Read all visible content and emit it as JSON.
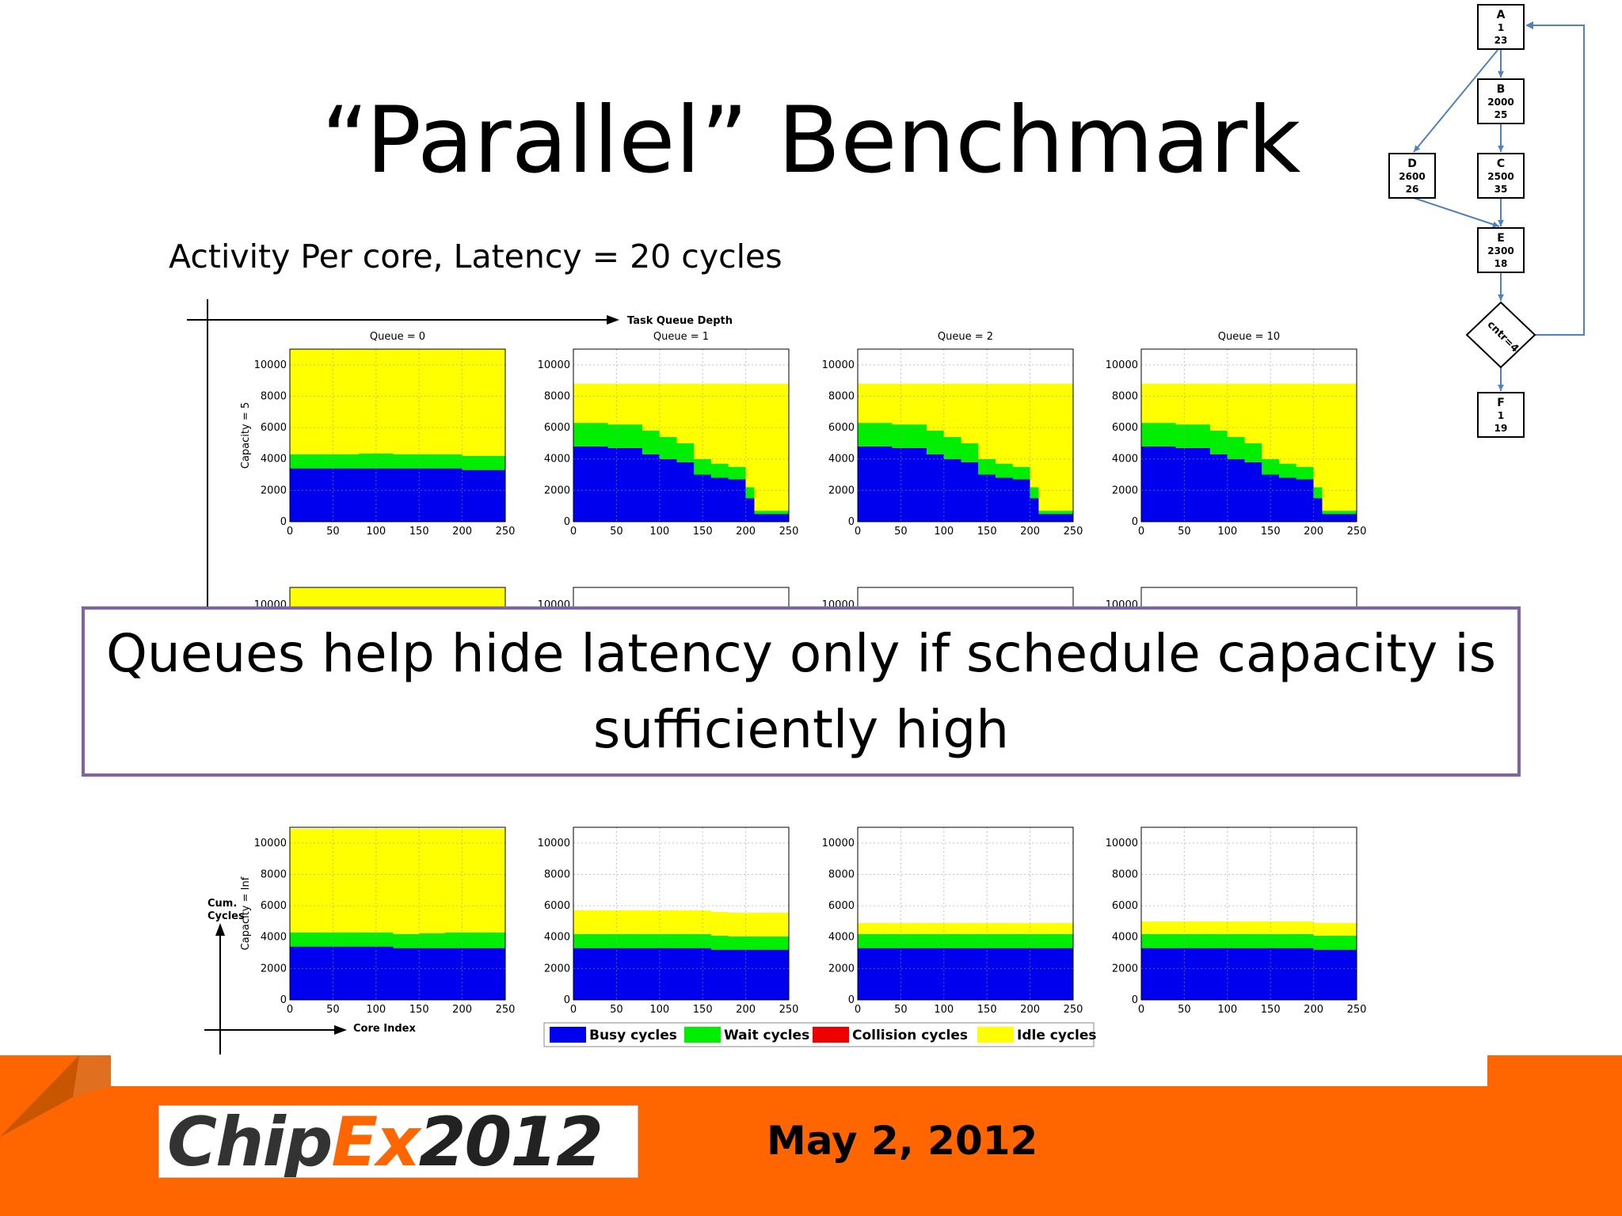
{
  "title": "“Parallel” Benchmark",
  "subtitle": "Activity Per core, Latency = 20 cycles",
  "callout": "Queues help hide latency only if schedule capacity is sufficiently high",
  "footer": {
    "logo_part1": "Chip",
    "logo_part2": "Ex",
    "logo_year": "2012",
    "date": "May 2, 2012"
  },
  "axes_labels": {
    "task_queue_depth": "Task Queue Depth",
    "cum_cycles": "Cum. Cycles",
    "core_index": "Core Index"
  },
  "flowchart": {
    "nodes": [
      {
        "id": "A",
        "v1": "1",
        "v2": "23"
      },
      {
        "id": "B",
        "v1": "2000",
        "v2": "25"
      },
      {
        "id": "C",
        "v1": "2500",
        "v2": "35"
      },
      {
        "id": "D",
        "v1": "2600",
        "v2": "26"
      },
      {
        "id": "E",
        "v1": "2300",
        "v2": "18"
      },
      {
        "id": "F",
        "v1": "1",
        "v2": "19"
      }
    ],
    "decision": "cntr=4"
  },
  "chart_data": {
    "type": "area",
    "stacked": true,
    "x": [
      0,
      40,
      80,
      100,
      120,
      140,
      150,
      160,
      180,
      200,
      210,
      220,
      250
    ],
    "xlim": [
      0,
      250
    ],
    "ylim": [
      0,
      11000
    ],
    "xticks": [
      0,
      50,
      100,
      150,
      200,
      250
    ],
    "yticks": [
      0,
      2000,
      4000,
      6000,
      8000,
      10000
    ],
    "grid": true,
    "legend": {
      "position": "bottom",
      "entries": [
        {
          "name": "Busy cycles",
          "color": "#0000ee"
        },
        {
          "name": "Wait cycles",
          "color": "#00ee00"
        },
        {
          "name": "Collision cycles",
          "color": "#ee0000"
        },
        {
          "name": "Idle cycles",
          "color": "#ffff00"
        }
      ]
    },
    "rows": [
      {
        "ylabel": "Capacity = 5",
        "panels": [
          {
            "title": "Queue = 0",
            "busy": [
              3400,
              3400,
              3400,
              3400,
              3400,
              3400,
              3400,
              3400,
              3400,
              3300,
              3300,
              3300,
              3300
            ],
            "wait": [
              900,
              900,
              950,
              950,
              900,
              900,
              900,
              900,
              900,
              900,
              900,
              900,
              900
            ],
            "collision": [
              0,
              0,
              0,
              0,
              0,
              0,
              0,
              0,
              0,
              0,
              0,
              0,
              0
            ],
            "idle": [
              6700,
              6700,
              6650,
              6650,
              6700,
              6700,
              6700,
              6700,
              6700,
              6800,
              6800,
              6800,
              6800
            ]
          },
          {
            "title": "Queue = 1",
            "busy": [
              4800,
              4700,
              4300,
              4000,
              3800,
              3000,
              3000,
              2800,
              2700,
              1500,
              500,
              500,
              500
            ],
            "wait": [
              1500,
              1500,
              1500,
              1400,
              1200,
              1000,
              1000,
              900,
              800,
              700,
              200,
              200,
              200
            ],
            "collision": [
              0,
              0,
              0,
              0,
              0,
              0,
              0,
              0,
              0,
              0,
              0,
              0,
              0
            ],
            "idle": [
              2500,
              2600,
              3000,
              3400,
              3800,
              4800,
              4800,
              5100,
              5300,
              6600,
              8100,
              8100,
              8100
            ]
          },
          {
            "title": "Queue = 2",
            "busy": [
              4800,
              4700,
              4300,
              4000,
              3800,
              3000,
              3000,
              2800,
              2700,
              1500,
              500,
              500,
              500
            ],
            "wait": [
              1500,
              1500,
              1500,
              1400,
              1200,
              1000,
              1000,
              900,
              800,
              700,
              200,
              200,
              200
            ],
            "collision": [
              0,
              0,
              0,
              0,
              0,
              0,
              0,
              0,
              0,
              0,
              0,
              0,
              0
            ],
            "idle": [
              2500,
              2600,
              3000,
              3400,
              3800,
              4800,
              4800,
              5100,
              5300,
              6600,
              8100,
              8100,
              8100
            ]
          },
          {
            "title": "Queue = 10",
            "busy": [
              4800,
              4700,
              4300,
              4000,
              3800,
              3000,
              3000,
              2800,
              2700,
              1500,
              500,
              500,
              500
            ],
            "wait": [
              1500,
              1500,
              1500,
              1400,
              1200,
              1000,
              1000,
              900,
              800,
              700,
              200,
              200,
              200
            ],
            "collision": [
              0,
              0,
              0,
              0,
              0,
              0,
              0,
              0,
              0,
              0,
              0,
              0,
              0
            ],
            "idle": [
              2500,
              2600,
              3000,
              3400,
              3800,
              4800,
              4800,
              5100,
              5300,
              6600,
              8100,
              8100,
              8100
            ]
          }
        ]
      },
      {
        "ylabel": "Capacity = Inf",
        "panels": [
          {
            "title": "",
            "busy": [
              3400,
              3400,
              3400,
              3400,
              3300,
              3300,
              3300,
              3300,
              3300,
              3300,
              3300,
              3300,
              3300
            ],
            "wait": [
              900,
              900,
              900,
              900,
              900,
              900,
              950,
              950,
              1000,
              1000,
              1000,
              1000,
              1000
            ],
            "collision": [
              0,
              0,
              0,
              0,
              0,
              0,
              0,
              0,
              0,
              0,
              0,
              0,
              0
            ],
            "idle": [
              6600,
              6600,
              6600,
              6600,
              6700,
              6700,
              6650,
              6650,
              6600,
              6600,
              6600,
              6600,
              6600
            ]
          },
          {
            "title": "",
            "busy": [
              3300,
              3300,
              3300,
              3300,
              3300,
              3300,
              3300,
              3200,
              3200,
              3200,
              3200,
              3200,
              3200
            ],
            "wait": [
              900,
              900,
              900,
              900,
              900,
              900,
              900,
              900,
              850,
              850,
              850,
              850,
              850
            ],
            "collision": [
              0,
              0,
              0,
              0,
              0,
              0,
              0,
              0,
              0,
              0,
              0,
              0,
              0
            ],
            "idle": [
              1500,
              1500,
              1500,
              1500,
              1500,
              1500,
              1500,
              1500,
              1500,
              1500,
              1500,
              1500,
              1500
            ]
          },
          {
            "title": "",
            "busy": [
              3300,
              3300,
              3300,
              3300,
              3300,
              3300,
              3300,
              3300,
              3300,
              3300,
              3300,
              3300,
              3300
            ],
            "wait": [
              900,
              900,
              900,
              900,
              900,
              900,
              900,
              900,
              900,
              900,
              900,
              900,
              900
            ],
            "collision": [
              0,
              0,
              0,
              0,
              0,
              0,
              0,
              0,
              0,
              0,
              0,
              0,
              0
            ],
            "idle": [
              700,
              700,
              700,
              700,
              700,
              700,
              700,
              700,
              700,
              700,
              700,
              700,
              700
            ]
          },
          {
            "title": "",
            "busy": [
              3300,
              3300,
              3300,
              3300,
              3300,
              3300,
              3300,
              3300,
              3300,
              3200,
              3200,
              3200,
              3200
            ],
            "wait": [
              900,
              900,
              900,
              900,
              900,
              900,
              900,
              900,
              900,
              900,
              900,
              900,
              900
            ],
            "collision": [
              0,
              0,
              0,
              0,
              0,
              0,
              0,
              0,
              0,
              0,
              0,
              0,
              0
            ],
            "idle": [
              800,
              800,
              800,
              800,
              800,
              800,
              800,
              800,
              800,
              800,
              800,
              800,
              800
            ]
          }
        ]
      }
    ]
  }
}
